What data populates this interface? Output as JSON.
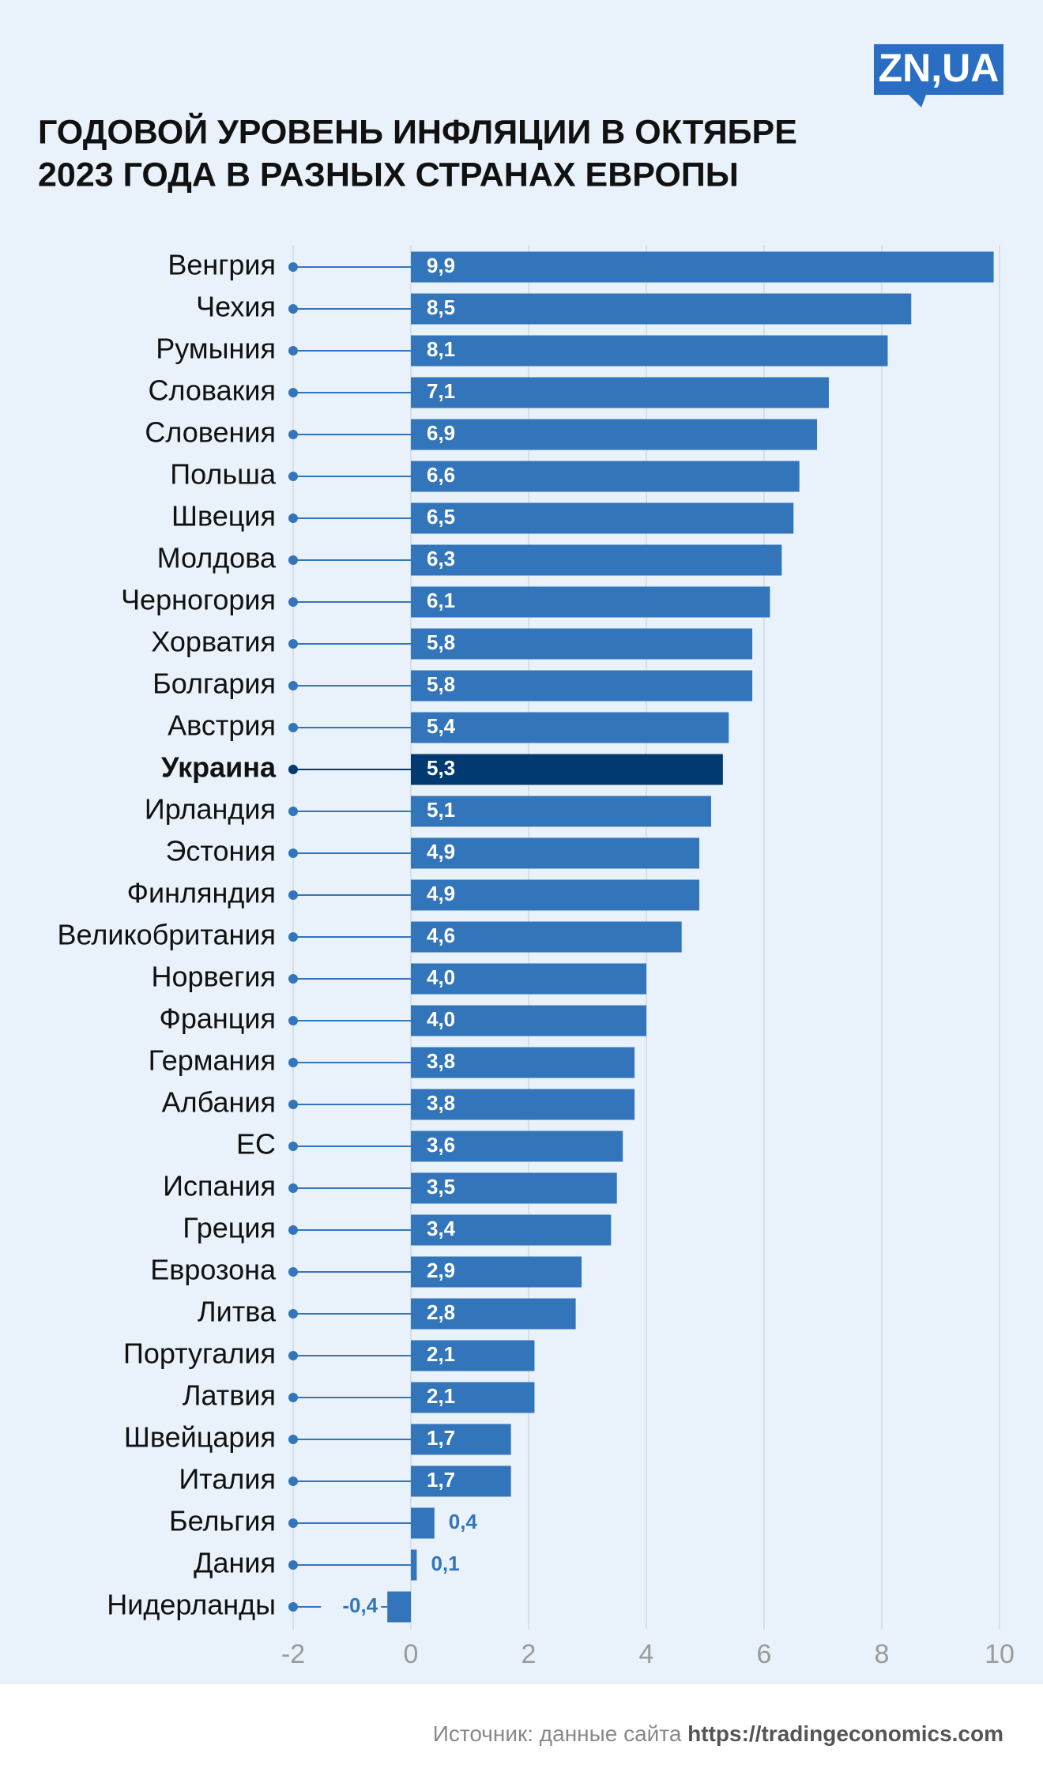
{
  "chart_data": {
    "type": "hbar",
    "logo": "ZN,UA",
    "title": [
      "ГОДОВОЙ УРОВЕНЬ ИНФЛЯЦИИ В ОКТЯБРЕ",
      "2023 ГОДА В РАЗНЫХ СТРАНАХ ЕВРОПЫ"
    ],
    "source": [
      "Источник: данные сайта ",
      "https://tradingeconomics.com"
    ],
    "categories": [
      "Венгрия",
      "Чехия",
      "Румыния",
      "Словакия",
      "Словения",
      "Польша",
      "Швеция",
      "Молдова",
      "Черногория",
      "Хорватия",
      "Болгария",
      "Австрия",
      "Украина",
      "Ирландия",
      "Эстония",
      "Финляндия",
      "Великобритания",
      "Норвегия",
      "Франция",
      "Германия",
      "Албания",
      "ЕС",
      "Испания",
      "Греция",
      "Еврозона",
      "Литва",
      "Португалия",
      "Латвия",
      "Швейцария",
      "Италия",
      "Бельгия",
      "Дания",
      "Нидерланды"
    ],
    "values": [
      9.9,
      8.5,
      8.1,
      7.1,
      6.9,
      6.6,
      6.5,
      6.3,
      6.1,
      5.8,
      5.8,
      5.4,
      5.3,
      5.1,
      4.9,
      4.9,
      4.6,
      4.0,
      4.0,
      3.8,
      3.8,
      3.6,
      3.5,
      3.4,
      2.9,
      2.8,
      2.1,
      2.1,
      1.7,
      1.7,
      0.4,
      0.1,
      -0.4
    ],
    "value_labels": [
      "9,9",
      "8,5",
      "8,1",
      "7,1",
      "6,9",
      "6,6",
      "6,5",
      "6,3",
      "6,1",
      "5,8",
      "5,8",
      "5,4",
      "5,3",
      "5,1",
      "4,9",
      "4,9",
      "4,6",
      "4,0",
      "4,0",
      "3,8",
      "3,8",
      "3,6",
      "3,5",
      "3,4",
      "2,9",
      "2,8",
      "2,1",
      "2,1",
      "1,7",
      "1,7",
      "0,4",
      "0,1",
      "-0,4"
    ],
    "color": "#3375bb",
    "colors": [
      "#3375bb",
      "#3375bb",
      "#3375bb",
      "#3375bb",
      "#3375bb",
      "#3375bb",
      "#3375bb",
      "#3375bb",
      "#3375bb",
      "#3375bb",
      "#3375bb",
      "#3375bb",
      "#003a70",
      "#3375bb",
      "#3375bb",
      "#3375bb",
      "#3375bb",
      "#3375bb",
      "#3375bb",
      "#3375bb",
      "#3375bb",
      "#3375bb",
      "#3375bb",
      "#3375bb",
      "#3375bb",
      "#3375bb",
      "#3375bb",
      "#3375bb",
      "#3375bb",
      "#3375bb",
      "#3375bb",
      "#3375bb",
      "#3375bb"
    ],
    "xlim": [
      -2,
      10
    ],
    "xticks": [
      -2,
      0,
      2,
      4,
      6,
      8,
      10
    ],
    "grid": true
  }
}
